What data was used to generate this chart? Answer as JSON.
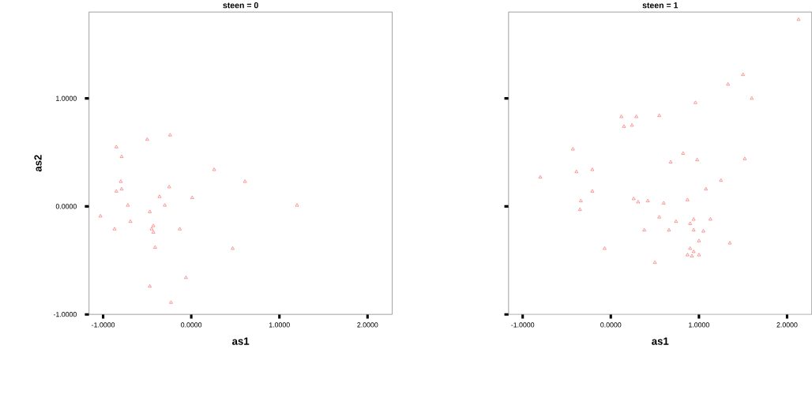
{
  "chart_data": [
    {
      "type": "scatter",
      "title": "steen = 0",
      "xlabel": "as1",
      "ylabel": "as2",
      "marker": "triangle",
      "color": "#f87070",
      "xlim": [
        -1.16,
        2.28
      ],
      "ylim": [
        -1.0,
        1.8
      ],
      "xticks": [
        {
          "value": -1,
          "label": "-1.0000"
        },
        {
          "value": 0,
          "label": "0.0000"
        },
        {
          "value": 1,
          "label": "1.0000"
        },
        {
          "value": 2,
          "label": "2.0000"
        }
      ],
      "yticks": [
        {
          "value": -1,
          "label": "-1.0000"
        },
        {
          "value": 0,
          "label": "0.0000"
        },
        {
          "value": 1,
          "label": "1.0000"
        }
      ],
      "x": [
        -0.24,
        -0.5,
        -0.85,
        -0.79,
        0.26,
        0.61,
        -0.8,
        -0.79,
        -0.85,
        -0.25,
        -0.36,
        0.01,
        -0.72,
        -0.3,
        1.2,
        -0.47,
        -1.03,
        -0.69,
        -0.43,
        -0.45,
        -0.43,
        -0.87,
        -0.13,
        -0.41,
        0.47,
        -0.06,
        -0.47,
        -0.23
      ],
      "values": [
        0.66,
        0.62,
        0.55,
        0.46,
        0.34,
        0.23,
        0.23,
        0.16,
        0.14,
        0.18,
        0.09,
        0.08,
        0.01,
        0.01,
        0.01,
        -0.05,
        -0.09,
        -0.14,
        -0.18,
        -0.21,
        -0.24,
        -0.21,
        -0.21,
        -0.38,
        -0.39,
        -0.66,
        -0.74,
        -0.89
      ]
    },
    {
      "type": "scatter",
      "title": "steen = 1",
      "xlabel": "as1",
      "marker": "triangle",
      "color": "#f87070",
      "tick_labels": "x",
      "xlim": [
        -1.16,
        2.28
      ],
      "ylim": [
        -1.0,
        1.8
      ],
      "xticks": [
        {
          "value": -1,
          "label": "-1.0000"
        },
        {
          "value": 0,
          "label": "0.0000"
        },
        {
          "value": 1,
          "label": "1.0000"
        },
        {
          "value": 2,
          "label": "2.0000"
        }
      ],
      "yticks": [
        {
          "value": -1,
          "label": null
        },
        {
          "value": 0,
          "label": null
        },
        {
          "value": 1,
          "label": null
        }
      ],
      "x": [
        2.13,
        1.5,
        1.33,
        1.6,
        0.96,
        0.12,
        0.29,
        0.55,
        0.15,
        0.24,
        -0.43,
        0.82,
        0.68,
        0.98,
        1.52,
        -0.39,
        -0.21,
        -0.8,
        1.25,
        1.08,
        -0.21,
        -0.34,
        -0.35,
        0.26,
        0.31,
        0.42,
        0.6,
        0.87,
        0.55,
        0.74,
        0.94,
        1.13,
        0.9,
        0.38,
        0.66,
        0.94,
        1.05,
        1.0,
        1.35,
        0.9,
        0.94,
        1.0,
        0.87,
        0.92,
        -0.07,
        0.5
      ],
      "values": [
        1.73,
        1.22,
        1.13,
        1.0,
        0.96,
        0.83,
        0.83,
        0.84,
        0.74,
        0.75,
        0.53,
        0.49,
        0.41,
        0.43,
        0.44,
        0.32,
        0.34,
        0.27,
        0.24,
        0.16,
        0.14,
        0.05,
        -0.03,
        0.07,
        0.04,
        0.05,
        0.03,
        0.06,
        -0.1,
        -0.14,
        -0.12,
        -0.12,
        -0.16,
        -0.22,
        -0.22,
        -0.22,
        -0.23,
        -0.32,
        -0.34,
        -0.39,
        -0.42,
        -0.45,
        -0.45,
        -0.46,
        -0.39,
        -0.52
      ]
    }
  ]
}
